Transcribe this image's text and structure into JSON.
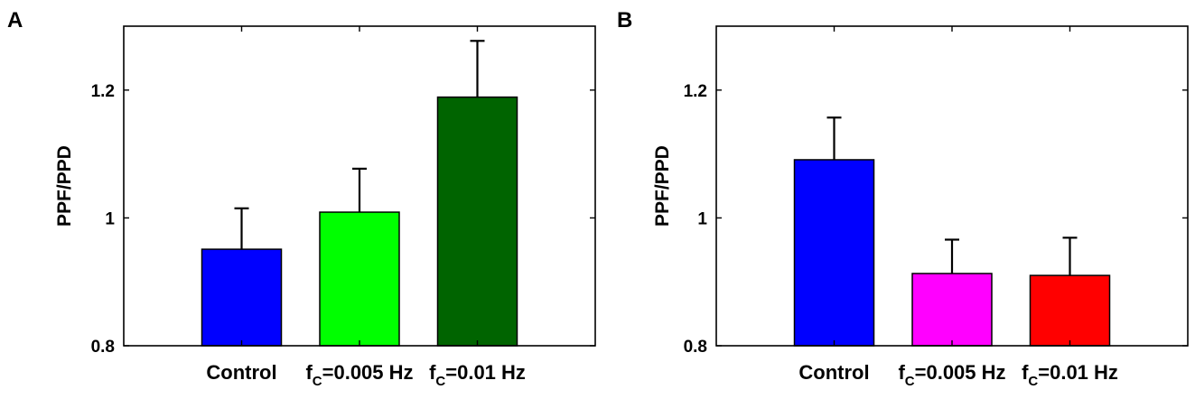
{
  "chart_data": [
    {
      "type": "bar",
      "panel": "A",
      "ylabel": "PPF/PPD",
      "ylim": [
        0.8,
        1.3
      ],
      "yticks": [
        0.8,
        1,
        1.2
      ],
      "ytick_labels": [
        "0.8",
        "1",
        "1.2"
      ],
      "grid": false,
      "categories": [
        {
          "main": "Control",
          "sub": "",
          "rest": ""
        },
        {
          "main": "f",
          "sub": "C",
          "rest": "=0.005 Hz"
        },
        {
          "main": "f",
          "sub": "C",
          "rest": "=0.01 Hz"
        }
      ],
      "values": [
        0.951,
        1.009,
        1.189
      ],
      "errors": [
        0.064,
        0.068,
        0.088
      ],
      "colors": [
        "#0000ff",
        "#00ff00",
        "#006400"
      ]
    },
    {
      "type": "bar",
      "panel": "B",
      "ylabel": "PPF/PPD",
      "ylim": [
        0.8,
        1.3
      ],
      "yticks": [
        0.8,
        1,
        1.2
      ],
      "ytick_labels": [
        "0.8",
        "1",
        "1.2"
      ],
      "grid": false,
      "categories": [
        {
          "main": "Control",
          "sub": "",
          "rest": ""
        },
        {
          "main": "f",
          "sub": "C",
          "rest": "=0.005 Hz"
        },
        {
          "main": "f",
          "sub": "C",
          "rest": "=0.01 Hz"
        }
      ],
      "values": [
        1.091,
        0.913,
        0.91
      ],
      "errors": [
        0.066,
        0.053,
        0.059
      ],
      "colors": [
        "#0000ff",
        "#ff00ff",
        "#ff0000"
      ]
    }
  ]
}
